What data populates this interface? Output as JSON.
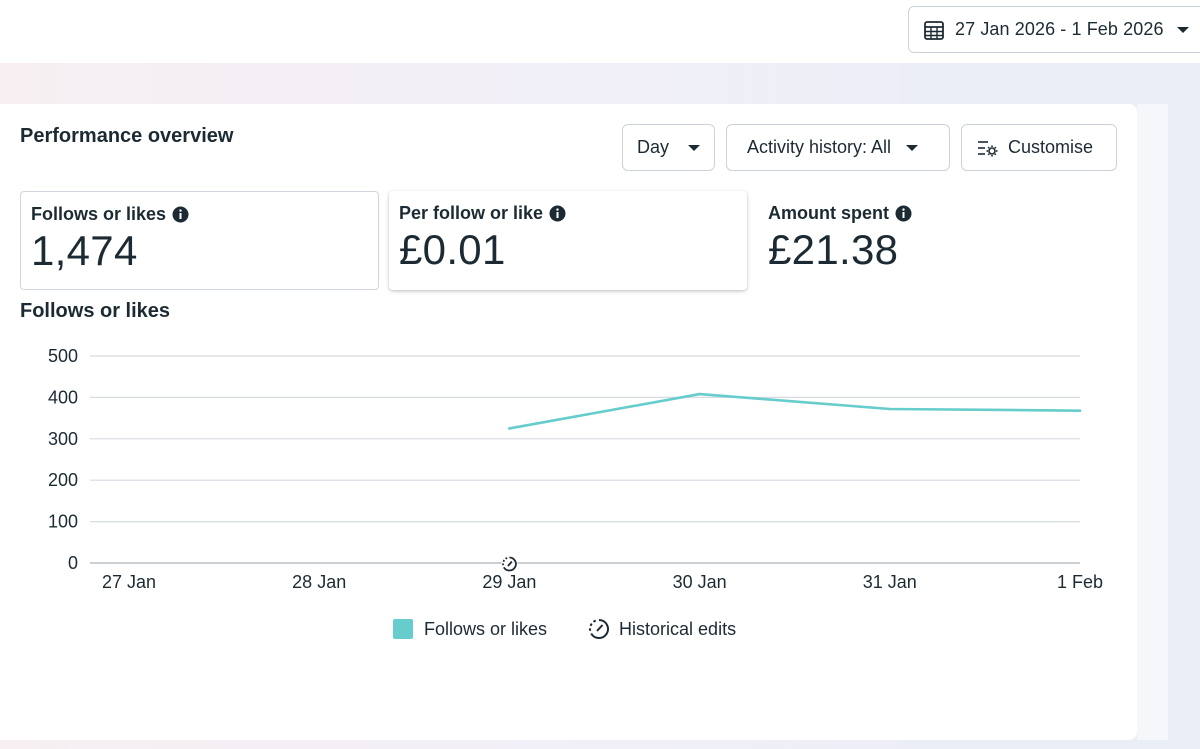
{
  "header": {
    "date_range": "27 Jan 2026 - 1 Feb 2026",
    "calendar_icon": "calendar-icon",
    "caret_icon": "caret-down-icon"
  },
  "overview": {
    "title": "Performance overview",
    "controls": {
      "granularity": "Day",
      "activity": "Activity history: All",
      "customise": "Customise"
    }
  },
  "metrics": [
    {
      "label": "Follows or likes",
      "value": "1,474"
    },
    {
      "label": "Per follow or like",
      "value": "£0.01"
    },
    {
      "label": "Amount spent",
      "value": "£21.38"
    }
  ],
  "chart_title": "Follows or likes",
  "colors": {
    "series": "#66cccc",
    "grid": "#d6dbe0"
  },
  "chart_data": {
    "type": "line",
    "title": "Follows or likes",
    "xlabel": "",
    "ylabel": "",
    "categories": [
      "27 Jan",
      "28 Jan",
      "29 Jan",
      "30 Jan",
      "31 Jan",
      "1 Feb"
    ],
    "series": [
      {
        "name": "Follows or likes",
        "values": [
          null,
          null,
          325,
          408,
          372,
          368
        ]
      }
    ],
    "ylim": [
      0,
      500
    ],
    "yticks": [
      0,
      100,
      200,
      300,
      400,
      500
    ],
    "grid": true,
    "annotations": [
      {
        "type": "historical-edit-marker",
        "x": "29 Jan"
      }
    ]
  },
  "legend": {
    "series_label": "Follows or likes",
    "historical_label": "Historical edits"
  }
}
